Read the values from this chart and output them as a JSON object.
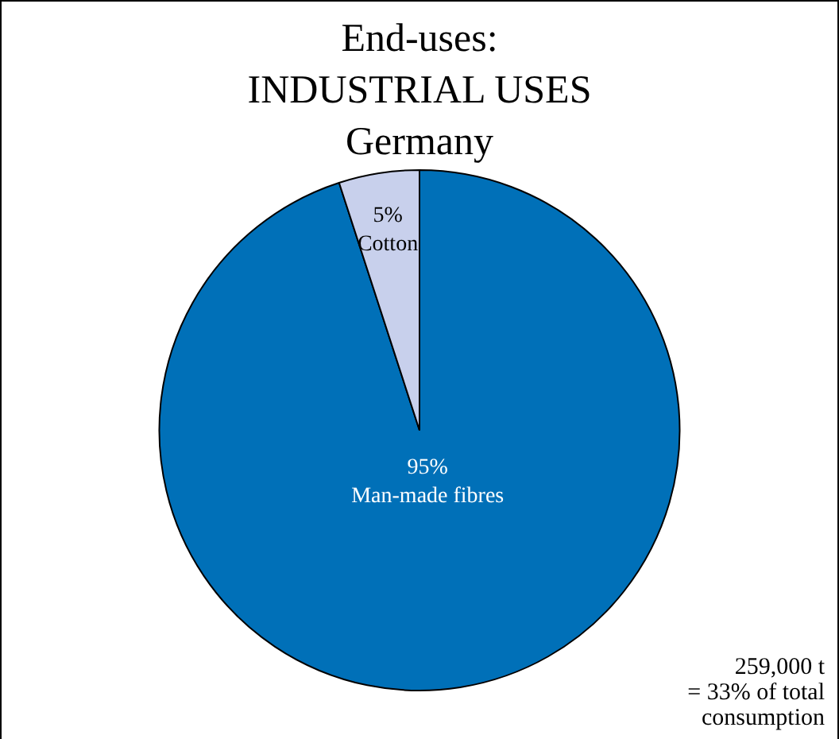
{
  "chart_data": {
    "type": "pie",
    "title": "End-uses:\nINDUSTRIAL USES\nGermany",
    "categories": [
      "Man-made fibres",
      "Cotton"
    ],
    "values": [
      95,
      5
    ],
    "colors": [
      "#0070b8",
      "#c8d0ec"
    ],
    "value_labels": [
      "95%",
      "5%"
    ],
    "legend": false,
    "annotations": [
      "259,000 t\n= 33% of total\nconsumption"
    ]
  }
}
